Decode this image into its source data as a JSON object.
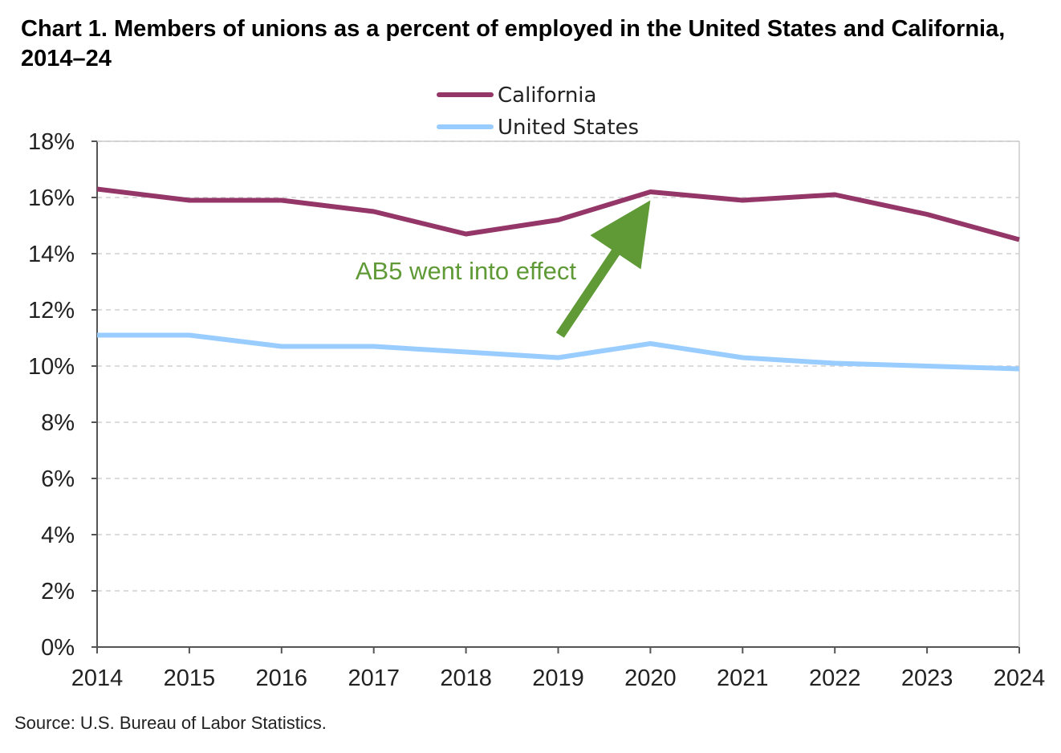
{
  "title": "Chart 1. Members of unions as a percent of employed  in the United States and California, 2014–24",
  "source": "Source: U.S. Bureau of Labor Statistics.",
  "colors": {
    "california": "#943768",
    "united_states": "#99ccff",
    "annotation": "#5f9a36",
    "gridline": "#d0d0d0",
    "axis": "#555555"
  },
  "chart_data": {
    "type": "line",
    "x": [
      2014,
      2015,
      2016,
      2017,
      2018,
      2019,
      2020,
      2021,
      2022,
      2023,
      2024
    ],
    "x_tick_labels": [
      "2014",
      "2015",
      "2016",
      "2017",
      "2018",
      "2019",
      "2020",
      "2021",
      "2022",
      "2023",
      "2024"
    ],
    "ylim": [
      0,
      18
    ],
    "y_ticks": [
      0,
      2,
      4,
      6,
      8,
      10,
      12,
      14,
      16,
      18
    ],
    "y_tick_labels": [
      "0%",
      "2%",
      "4%",
      "6%",
      "8%",
      "10%",
      "12%",
      "14%",
      "16%",
      "18%"
    ],
    "grid": true,
    "legend_position": "top-center",
    "series": [
      {
        "name": "California",
        "values": [
          16.3,
          15.9,
          15.9,
          15.5,
          14.7,
          15.2,
          16.2,
          15.9,
          16.1,
          15.4,
          14.5
        ]
      },
      {
        "name": "United States",
        "values": [
          11.1,
          11.1,
          10.7,
          10.7,
          10.5,
          10.3,
          10.8,
          10.3,
          10.1,
          10.0,
          9.9
        ]
      }
    ],
    "annotations": [
      {
        "text": "AB5 went into effect",
        "points_to_x": 2020,
        "arrow_from": [
          2019.02,
          11.1
        ],
        "arrow_to": [
          2020.0,
          15.9
        ]
      }
    ]
  }
}
